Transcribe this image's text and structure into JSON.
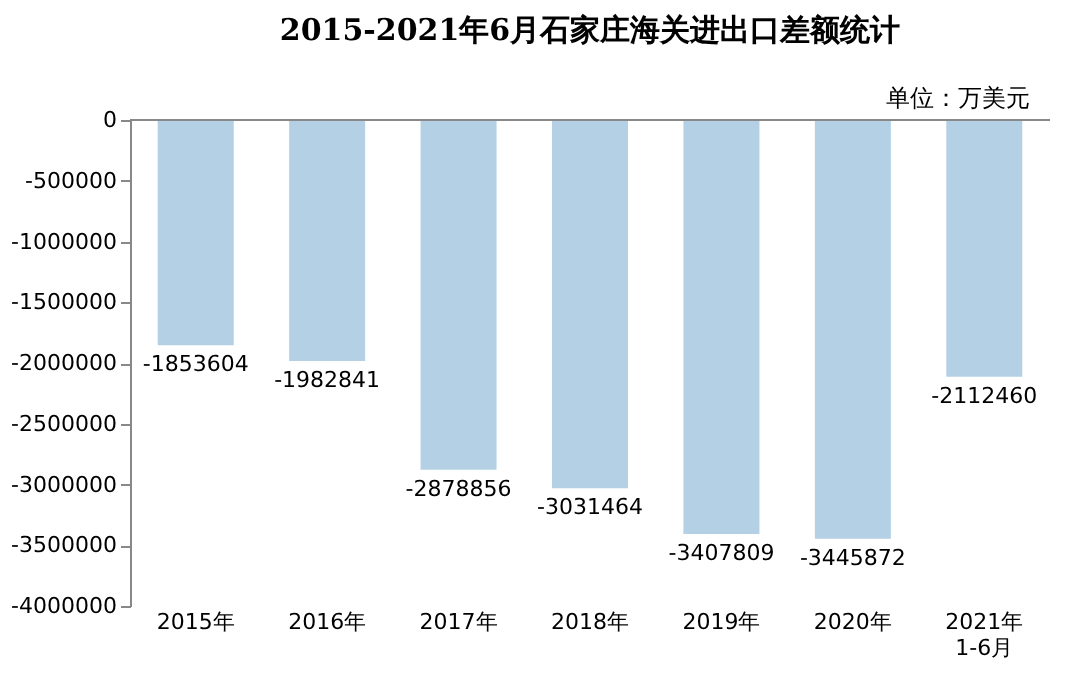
{
  "chart_data": {
    "type": "bar",
    "title": "2015-2021年6月石家庄海关进出口差额统计",
    "annotations": [
      "单位：万美元"
    ],
    "categories": [
      "2015年",
      "2016年",
      "2017年",
      "2018年",
      "2019年",
      "2020年",
      "2021年\n1-6月"
    ],
    "values": [
      -1853604,
      -1982841,
      -2878856,
      -3031464,
      -3407809,
      -3445872,
      -2112460
    ],
    "color": "#b4d0e4",
    "ylim": [
      -4000000,
      0
    ],
    "yticks": [
      -4000000,
      -3500000,
      -3000000,
      -2500000,
      -2000000,
      -1500000,
      -1000000,
      -500000,
      0
    ],
    "grid": false,
    "data_labels": true
  }
}
